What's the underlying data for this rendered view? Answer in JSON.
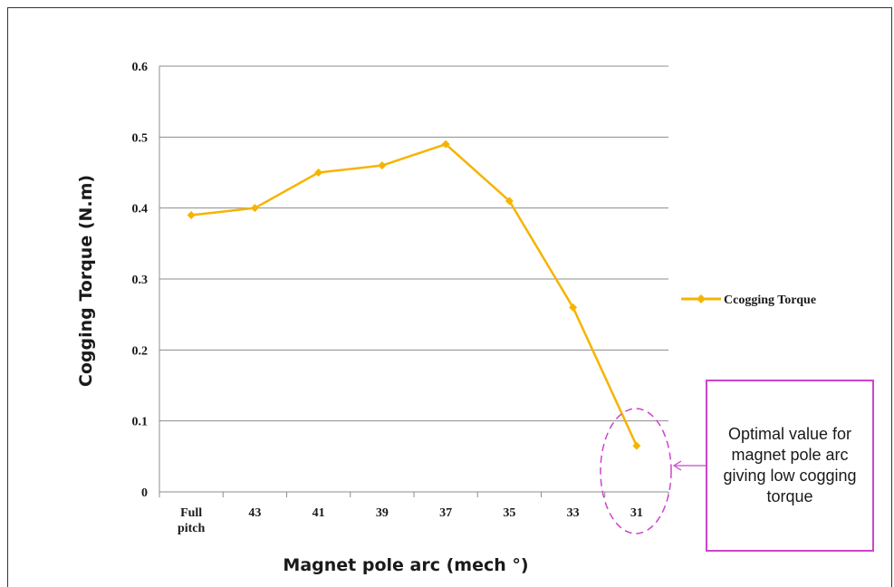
{
  "chart_data": {
    "type": "line",
    "categories": [
      [
        "Full",
        "pitch"
      ],
      [
        "43"
      ],
      [
        "41"
      ],
      [
        "39"
      ],
      [
        "37"
      ],
      [
        "35"
      ],
      [
        "33"
      ],
      [
        "31"
      ]
    ],
    "series": [
      {
        "name": "Ccogging Torque",
        "values": [
          0.39,
          0.4,
          0.45,
          0.46,
          0.49,
          0.41,
          0.26,
          0.065
        ],
        "color": "#f5b400"
      }
    ],
    "y_ticks": [
      "0",
      "0.1",
      "0.2",
      "0.3",
      "0.4",
      "0.5",
      "0.6"
    ],
    "ylim": [
      0,
      0.6
    ],
    "xlabel": "Magnet pole arc (mech °)",
    "ylabel": "Cogging Torque (N.m)",
    "grid": "horizontal",
    "legend_position": "right",
    "annotation": "Optimal value for  magnet pole arc giving low cogging torque",
    "colors": {
      "annotation_border": "#cc44cc",
      "gridline": "#8c8c8c"
    }
  }
}
